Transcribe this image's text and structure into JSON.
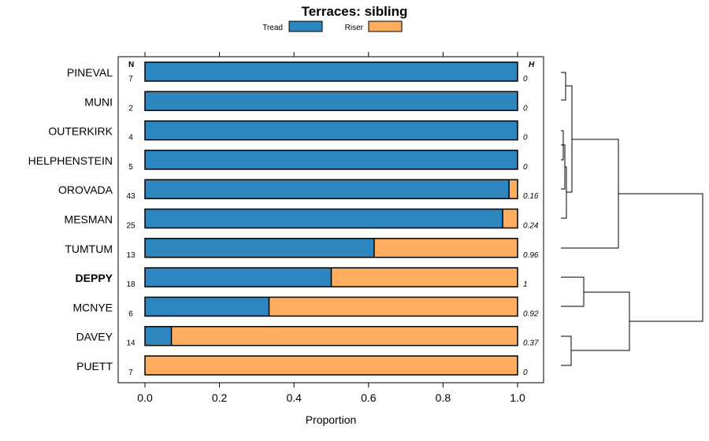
{
  "chart_data": {
    "type": "bar",
    "orientation": "horizontal",
    "stacked": true,
    "title": "Terraces: sibling",
    "xlabel": "Proportion",
    "ylabel": "",
    "xlim": [
      0,
      1
    ],
    "x_ticks": [
      "0.0",
      "0.2",
      "0.4",
      "0.6",
      "0.8",
      "1.0"
    ],
    "x_tick_values": [
      0,
      0.2,
      0.4,
      0.6,
      0.8,
      1.0
    ],
    "legend_position": "top",
    "n_header": "N",
    "h_header": "H",
    "categories": [
      "PINEVAL",
      "MUNI",
      "OUTERKIRK",
      "HELPHENSTEIN",
      "OROVADA",
      "MESMAN",
      "TUMTUM",
      "DEPPY",
      "MCNYE",
      "DAVEY",
      "PUETT"
    ],
    "highlighted": "DEPPY",
    "n_values": [
      "7",
      "2",
      "4",
      "5",
      "43",
      "25",
      "13",
      "18",
      "6",
      "14",
      "7"
    ],
    "h_values": [
      "0",
      "0",
      "0",
      "0",
      "0.16",
      "0.24",
      "0.96",
      "1",
      "0.92",
      "0.37",
      "0"
    ],
    "series": [
      {
        "name": "Tread",
        "color": "#2e86c1",
        "values": [
          1.0,
          1.0,
          1.0,
          1.0,
          0.977,
          0.96,
          0.615,
          0.5,
          0.333,
          0.071,
          0.0
        ]
      },
      {
        "name": "Riser",
        "color": "#ffad5f",
        "values": [
          0.0,
          0.0,
          0.0,
          0.0,
          0.023,
          0.04,
          0.385,
          0.5,
          0.667,
          0.929,
          1.0
        ]
      }
    ]
  }
}
